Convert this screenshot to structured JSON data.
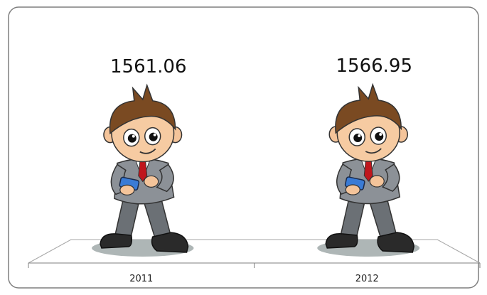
{
  "chart_data": {
    "type": "pictograph",
    "categories": [
      "2011",
      "2012"
    ],
    "values": [
      1561.06,
      1566.95
    ]
  }
}
